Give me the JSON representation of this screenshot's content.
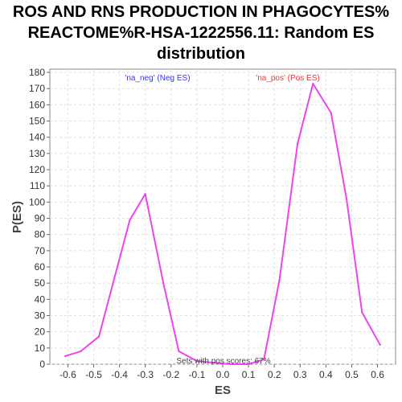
{
  "chart_data": {
    "type": "line",
    "title_lines": [
      "ROS AND RNS PRODUCTION IN PHAGOCYTES%",
      "REACTOME%R-HSA-1222556.11: Random ES",
      "distribution"
    ],
    "xlabel": "ES",
    "ylabel": "P(ES)",
    "xlim": [
      -0.67,
      0.67
    ],
    "ylim": [
      0,
      182
    ],
    "x_ticks": [
      -0.6,
      -0.5,
      -0.4,
      -0.3,
      -0.2,
      -0.1,
      0.0,
      0.1,
      0.2,
      0.3,
      0.4,
      0.5,
      0.6
    ],
    "x_tick_labels": [
      "-0.6",
      "-0.5",
      "-0.4",
      "-0.3",
      "-0.2",
      "-0.1",
      "0.0",
      "0.1",
      "0.2",
      "0.3",
      "0.4",
      "0.5",
      "0.6"
    ],
    "y_ticks": [
      0,
      10,
      20,
      30,
      40,
      50,
      60,
      70,
      80,
      90,
      100,
      110,
      120,
      130,
      140,
      150,
      160,
      170,
      180
    ],
    "y_tick_labels": [
      "0",
      "10",
      "20",
      "30",
      "40",
      "50",
      "60",
      "70",
      "80",
      "90",
      "100",
      "110",
      "120",
      "130",
      "140",
      "150",
      "160",
      "170",
      "180"
    ],
    "grid": true,
    "series": [
      {
        "color": "#ee44ee",
        "x": [
          -0.61,
          -0.55,
          -0.48,
          -0.42,
          -0.36,
          -0.3,
          -0.23,
          -0.17,
          -0.1,
          -0.04,
          0.03,
          0.1,
          0.16,
          0.22,
          0.29,
          0.35,
          0.42,
          0.48,
          0.54,
          0.61
        ],
        "y": [
          5,
          8,
          17,
          53,
          89,
          105,
          50,
          8,
          2,
          1,
          0,
          0,
          3,
          52,
          136,
          173,
          155,
          102,
          32,
          12
        ]
      }
    ],
    "legend": [
      {
        "label": "'na_neg' (Neg ES)",
        "color": "#3333ff"
      },
      {
        "label": "'na_pos' (Pos ES)",
        "color": "#ee3333"
      }
    ],
    "annotation": "Sets with pos scores: 67%"
  }
}
